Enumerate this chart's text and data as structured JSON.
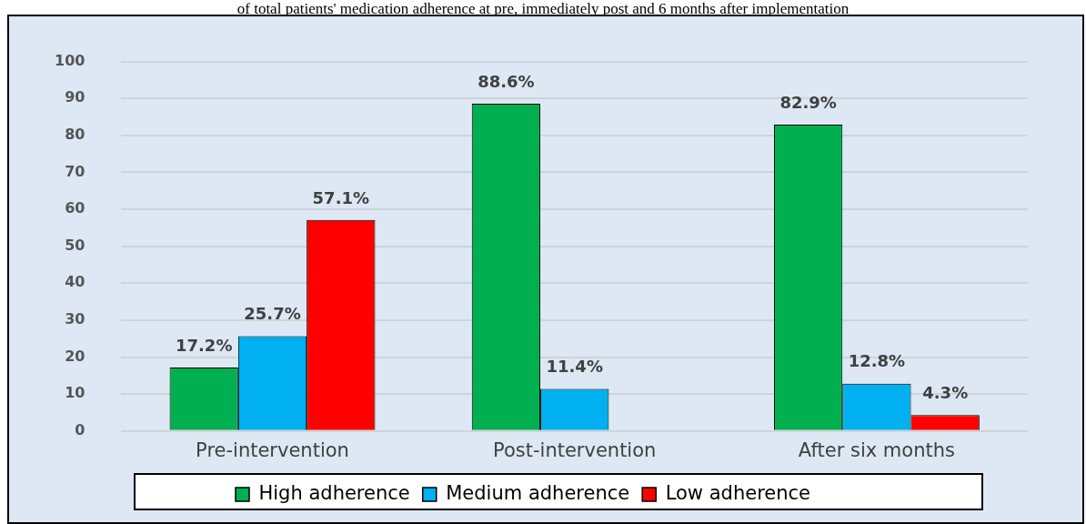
{
  "chart_data": {
    "type": "bar",
    "title": "of total patients' medication adherence at pre, immediately post and 6 months after implementation",
    "categories": [
      "Pre-intervention",
      "Post-intervention",
      "After six months"
    ],
    "series": [
      {
        "name": "High adherence",
        "color": "#00b050",
        "values": [
          17.2,
          88.6,
          82.9
        ],
        "value_labels": [
          "17.2%",
          "88.6%",
          "82.9%"
        ]
      },
      {
        "name": "Medium adherence",
        "color": "#00b0f0",
        "values": [
          25.7,
          11.4,
          12.8
        ],
        "value_labels": [
          "25.7%",
          "11.4%",
          "12.8%"
        ]
      },
      {
        "name": "Low adherence",
        "color": "#ff0000",
        "values": [
          57.1,
          null,
          4.3
        ],
        "value_labels": [
          "57.1%",
          null,
          "4.3%"
        ]
      }
    ],
    "ylim": [
      0,
      100
    ],
    "yticks": [
      0,
      10,
      20,
      30,
      40,
      50,
      60,
      70,
      80,
      90,
      100
    ],
    "grid": "y",
    "legend": "bottom"
  }
}
